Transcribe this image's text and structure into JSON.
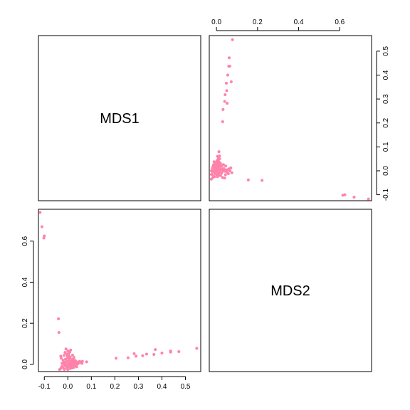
{
  "chart_data": {
    "type": "scatter",
    "layout": "pairs",
    "variables": [
      "MDS1",
      "MDS2"
    ],
    "point_color": "#FF82AB",
    "mds1_axis": {
      "ticks": [
        -0.1,
        0.0,
        0.1,
        0.2,
        0.3,
        0.4,
        0.5
      ],
      "tick_labels": [
        "-0.1",
        "0.0",
        "0.1",
        "0.2",
        "0.3",
        "0.4",
        "0.5"
      ],
      "range": [
        -0.125,
        0.565
      ]
    },
    "mds2_axis": {
      "ticks": [
        0.0,
        0.2,
        0.4,
        0.6
      ],
      "tick_labels": [
        "0.0",
        "0.2",
        "0.4",
        "0.6"
      ],
      "range": [
        -0.035,
        0.755
      ]
    },
    "points": [
      [
        -0.118,
        0.74
      ],
      [
        -0.11,
        0.67
      ],
      [
        -0.1,
        0.625
      ],
      [
        -0.102,
        0.615
      ],
      [
        -0.04,
        0.222
      ],
      [
        -0.038,
        0.155
      ],
      [
        0.548,
        0.078
      ],
      [
        0.472,
        0.062
      ],
      [
        0.437,
        0.065
      ],
      [
        0.437,
        0.06
      ],
      [
        0.4,
        0.055
      ],
      [
        0.372,
        0.072
      ],
      [
        0.366,
        0.048
      ],
      [
        0.335,
        0.05
      ],
      [
        0.318,
        0.042
      ],
      [
        0.29,
        0.04
      ],
      [
        0.282,
        0.052
      ],
      [
        0.256,
        0.032
      ],
      [
        0.205,
        0.03
      ],
      [
        0.08,
        0.012
      ],
      [
        0.062,
        0.015
      ],
      [
        0.055,
        0.01
      ],
      [
        0.048,
        0.008
      ],
      [
        0.0,
        0.0
      ],
      [
        0.01,
        0.005
      ],
      [
        -0.01,
        0.01
      ],
      [
        0.02,
        -0.005
      ],
      [
        0.005,
        0.02
      ],
      [
        -0.005,
        -0.01
      ],
      [
        0.015,
        0.015
      ],
      [
        -0.015,
        0.0
      ],
      [
        0.025,
        0.01
      ],
      [
        0.0,
        0.03
      ],
      [
        -0.02,
        -0.015
      ],
      [
        0.03,
        0.0
      ],
      [
        0.01,
        -0.02
      ],
      [
        -0.025,
        0.005
      ],
      [
        0.035,
        0.015
      ],
      [
        0.005,
        0.04
      ],
      [
        -0.01,
        0.025
      ],
      [
        0.02,
        0.025
      ],
      [
        -0.03,
        -0.02
      ],
      [
        0.04,
        0.005
      ],
      [
        0.0,
        -0.025
      ],
      [
        0.015,
        -0.01
      ],
      [
        -0.005,
        0.05
      ],
      [
        0.025,
        -0.015
      ],
      [
        -0.02,
        0.02
      ],
      [
        0.01,
        0.035
      ],
      [
        0.03,
        0.02
      ],
      [
        -0.015,
        -0.025
      ],
      [
        0.045,
        0.01
      ],
      [
        0.0,
        0.065
      ],
      [
        -0.008,
        0.075
      ],
      [
        0.008,
        0.06
      ],
      [
        -0.03,
        0.04
      ],
      [
        0.02,
        0.045
      ],
      [
        -0.025,
        -0.01
      ],
      [
        0.035,
        -0.005
      ],
      [
        0.005,
        0.01
      ],
      [
        -0.005,
        0.015
      ],
      [
        0.012,
        0.002
      ],
      [
        -0.012,
        -0.005
      ],
      [
        0.018,
        0.008
      ],
      [
        0.002,
        -0.012
      ],
      [
        0.022,
        0.018
      ],
      [
        -0.018,
        0.012
      ],
      [
        0.028,
        -0.008
      ],
      [
        0.008,
        0.028
      ],
      [
        -0.002,
        0.038
      ],
      [
        0.038,
        -0.012
      ],
      [
        -0.028,
        0.03
      ],
      [
        0.042,
        0.002
      ],
      [
        0.016,
        -0.018
      ],
      [
        -0.006,
        -0.018
      ],
      [
        0.026,
        0.034
      ],
      [
        -0.016,
        0.044
      ],
      [
        0.004,
        0.052
      ],
      [
        0.05,
        0.015
      ],
      [
        -0.035,
        -0.025
      ],
      [
        0.06,
        0.005
      ],
      [
        0.012,
        0.07
      ],
      [
        -0.012,
        0.058
      ],
      [
        0.032,
        0.008
      ],
      [
        -0.022,
        0.004
      ],
      [
        0.006,
        -0.004
      ],
      [
        0.024,
        0.002
      ],
      [
        -0.008,
        0.006
      ]
    ]
  }
}
